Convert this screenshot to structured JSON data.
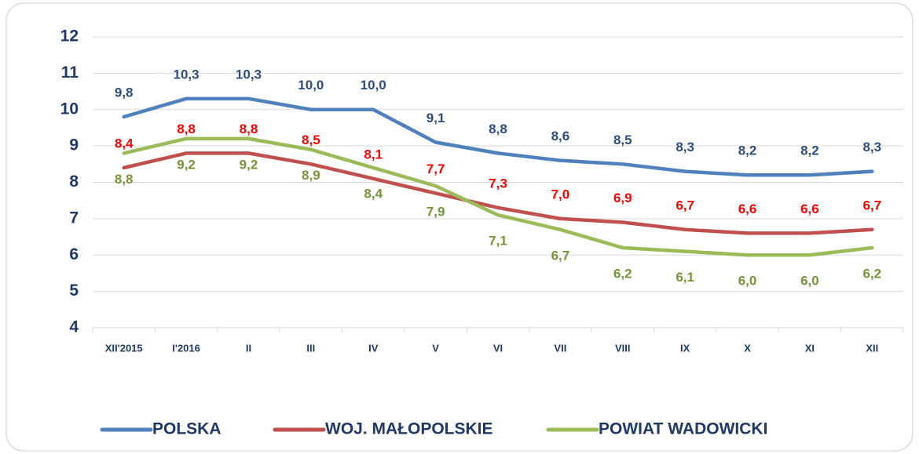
{
  "chart_data": {
    "type": "line",
    "categories": [
      "XII'2015",
      "I'2016",
      "II",
      "III",
      "IV",
      "V",
      "VI",
      "VII",
      "VIII",
      "IX",
      "X",
      "XI",
      "XII"
    ],
    "ylim": [
      4,
      12
    ],
    "yticks": [
      4,
      5,
      6,
      7,
      8,
      9,
      10,
      11,
      12
    ],
    "grid": true,
    "legend": "bottom",
    "series": [
      {
        "name": "POLSKA",
        "color": "#4f81bd",
        "label_color": "#2e4d7b",
        "values": [
          9.8,
          10.3,
          10.3,
          10.0,
          10.0,
          9.1,
          8.8,
          8.6,
          8.5,
          8.3,
          8.2,
          8.2,
          8.3
        ],
        "value_labels": [
          "9,8",
          "10,3",
          "10,3",
          "10,0",
          "10,0",
          "9,1",
          "8,8",
          "8,6",
          "8,5",
          "8,3",
          "8,2",
          "8,2",
          "8,3"
        ]
      },
      {
        "name": "WOJ. MAŁOPOLSKIE",
        "color": "#c0504d",
        "label_color": "#ff0000",
        "values": [
          8.4,
          8.8,
          8.8,
          8.5,
          8.1,
          7.7,
          7.3,
          7.0,
          6.9,
          6.7,
          6.6,
          6.6,
          6.7
        ],
        "value_labels": [
          "8,4",
          "8,8",
          "8,8",
          "8,5",
          "8,1",
          "7,7",
          "7,3",
          "7,0",
          "6,9",
          "6,7",
          "6,6",
          "6,6",
          "6,7"
        ]
      },
      {
        "name": "POWIAT WADOWICKI",
        "color": "#9bbb59",
        "label_color": "#77933c",
        "values": [
          8.8,
          9.2,
          9.2,
          8.9,
          8.4,
          7.9,
          7.1,
          6.7,
          6.2,
          6.1,
          6.0,
          6.0,
          6.2
        ],
        "value_labels": [
          "8,8",
          "9,2",
          "9,2",
          "8,9",
          "8,4",
          "7,9",
          "7,1",
          "6,7",
          "6,2",
          "6,1",
          "6,0",
          "6,0",
          "6,2"
        ]
      }
    ]
  }
}
